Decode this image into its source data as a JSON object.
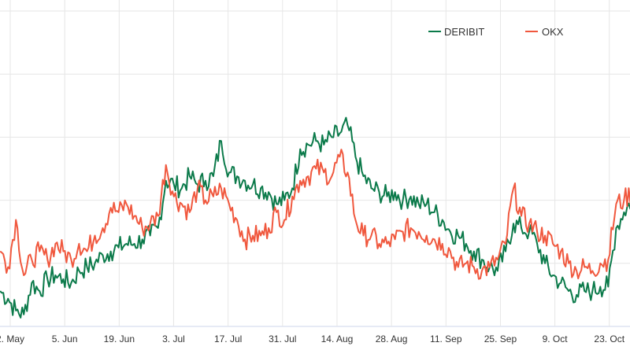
{
  "chart_data": {
    "type": "line",
    "title": "",
    "xlabel": "",
    "ylabel": "",
    "x_tick_labels": [
      "2. May",
      "5. Jun",
      "19. Jun",
      "3. Jul",
      "17. Jul",
      "31. Jul",
      "14. Aug",
      "28. Aug",
      "11. Sep",
      "25. Sep",
      "9. Oct",
      "23. Oct"
    ],
    "x_start_day_offset": -2.6,
    "x_step_days": 2.03,
    "ylim": [
      0,
      5
    ],
    "grid": true,
    "legend_position": "top-right",
    "series": [
      {
        "name": "DERIBIT",
        "color": "#0b7a4a",
        "values": [
          0.56,
          0.44,
          0.25,
          0.19,
          0.69,
          0.56,
          0.75,
          0.81,
          0.75,
          0.69,
          0.88,
          0.94,
          1.0,
          1.13,
          1.19,
          1.25,
          1.31,
          1.31,
          1.38,
          1.44,
          1.56,
          2.31,
          2.25,
          2.19,
          2.38,
          2.25,
          2.31,
          2.38,
          2.94,
          2.44,
          2.38,
          2.31,
          2.25,
          2.19,
          2.13,
          1.94,
          2.0,
          2.19,
          2.81,
          2.88,
          2.94,
          2.88,
          3.0,
          3.06,
          3.19,
          2.69,
          2.38,
          2.19,
          2.13,
          2.06,
          2.13,
          2.0,
          2.06,
          1.94,
          1.94,
          1.81,
          1.69,
          1.5,
          1.44,
          1.31,
          1.19,
          1.06,
          0.94,
          0.88,
          1.19,
          1.63,
          1.56,
          1.5,
          1.31,
          1.0,
          0.81,
          0.69,
          0.56,
          0.5,
          0.56,
          0.56,
          0.63,
          0.63,
          1.56,
          1.81,
          2.0
        ]
      },
      {
        "name": "OKX",
        "color": "#f0583e",
        "values": [
          1.19,
          0.94,
          1.69,
          0.81,
          1.06,
          1.19,
          1.06,
          1.31,
          1.19,
          1.06,
          1.31,
          1.19,
          1.44,
          1.56,
          1.88,
          1.81,
          1.94,
          1.75,
          1.56,
          1.63,
          1.75,
          2.56,
          2.06,
          1.94,
          1.81,
          2.19,
          2.0,
          2.06,
          2.19,
          1.94,
          1.69,
          1.38,
          1.44,
          1.44,
          1.56,
          1.81,
          1.69,
          2.06,
          2.31,
          2.38,
          2.5,
          2.44,
          2.38,
          2.69,
          2.44,
          1.69,
          1.44,
          1.44,
          1.31,
          1.31,
          1.38,
          1.5,
          1.56,
          1.5,
          1.44,
          1.38,
          1.31,
          1.19,
          0.94,
          1.0,
          0.94,
          0.88,
          0.94,
          1.06,
          1.31,
          2.19,
          1.75,
          1.63,
          1.5,
          1.44,
          1.31,
          1.19,
          1.0,
          0.88,
          0.94,
          0.88,
          1.0,
          1.06,
          1.94,
          2.0,
          2.13
        ]
      }
    ]
  }
}
